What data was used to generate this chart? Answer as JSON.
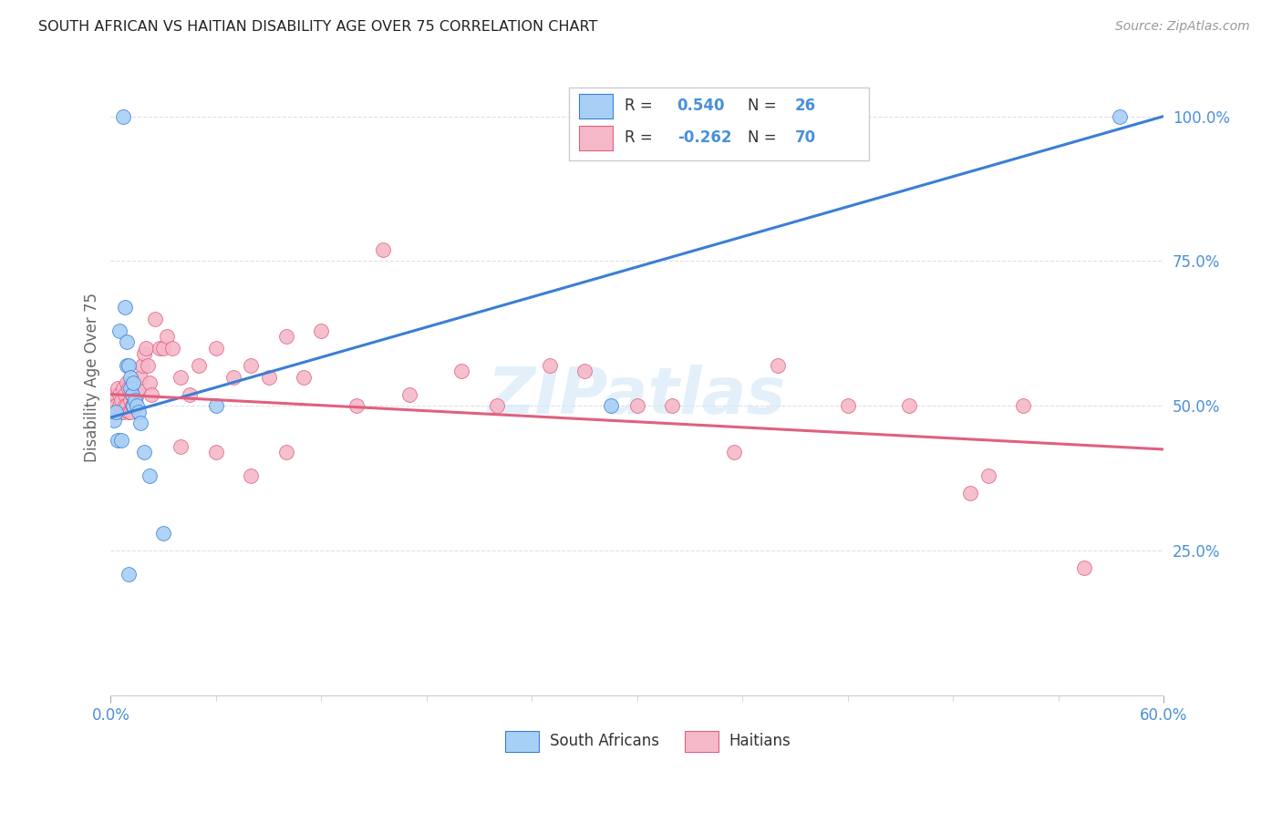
{
  "title": "SOUTH AFRICAN VS HAITIAN DISABILITY AGE OVER 75 CORRELATION CHART",
  "source": "Source: ZipAtlas.com",
  "ylabel": "Disability Age Over 75",
  "xlim": [
    0.0,
    0.6
  ],
  "ylim": [
    0.0,
    1.1
  ],
  "blue_color": "#a8cff5",
  "blue_line_color": "#3a7fd5",
  "pink_color": "#f5b8c8",
  "pink_line_color": "#e06080",
  "watermark_color": "#d8eaf8",
  "background_color": "#ffffff",
  "grid_color": "#e0e0e0",
  "tick_label_color": "#4a90d9",
  "title_color": "#222222",
  "source_color": "#999999",
  "ylabel_color": "#666666",
  "legend_text_color": "#333333",
  "blue_line_y0": 0.48,
  "blue_line_y1": 1.0,
  "pink_line_y0": 0.52,
  "pink_line_y1": 0.425,
  "sa_pts_x": [
    0.002,
    0.003,
    0.005,
    0.007,
    0.008,
    0.009,
    0.009,
    0.01,
    0.011,
    0.011,
    0.012,
    0.013,
    0.013,
    0.014,
    0.015,
    0.016,
    0.017,
    0.019,
    0.022,
    0.03,
    0.06,
    0.285,
    0.575,
    0.004,
    0.006,
    0.01
  ],
  "sa_pts_y": [
    0.475,
    0.49,
    0.63,
    1.0,
    0.67,
    0.61,
    0.57,
    0.57,
    0.55,
    0.53,
    0.52,
    0.54,
    0.5,
    0.51,
    0.5,
    0.49,
    0.47,
    0.42,
    0.38,
    0.28,
    0.5,
    0.5,
    1.0,
    0.44,
    0.44,
    0.21
  ],
  "ht_pts_x": [
    0.001,
    0.002,
    0.002,
    0.003,
    0.003,
    0.004,
    0.004,
    0.005,
    0.005,
    0.006,
    0.006,
    0.007,
    0.007,
    0.008,
    0.008,
    0.009,
    0.009,
    0.01,
    0.01,
    0.011,
    0.011,
    0.012,
    0.012,
    0.013,
    0.014,
    0.015,
    0.016,
    0.017,
    0.018,
    0.019,
    0.02,
    0.021,
    0.022,
    0.023,
    0.025,
    0.028,
    0.03,
    0.032,
    0.035,
    0.04,
    0.045,
    0.05,
    0.06,
    0.07,
    0.08,
    0.09,
    0.1,
    0.11,
    0.12,
    0.14,
    0.155,
    0.17,
    0.2,
    0.22,
    0.25,
    0.27,
    0.3,
    0.32,
    0.355,
    0.38,
    0.42,
    0.455,
    0.49,
    0.5,
    0.52,
    0.555,
    0.1,
    0.08,
    0.06,
    0.04
  ],
  "ht_pts_y": [
    0.5,
    0.51,
    0.49,
    0.52,
    0.5,
    0.53,
    0.49,
    0.52,
    0.5,
    0.51,
    0.49,
    0.53,
    0.49,
    0.52,
    0.5,
    0.54,
    0.5,
    0.53,
    0.49,
    0.51,
    0.49,
    0.52,
    0.5,
    0.5,
    0.51,
    0.52,
    0.53,
    0.55,
    0.57,
    0.59,
    0.6,
    0.57,
    0.54,
    0.52,
    0.65,
    0.6,
    0.6,
    0.62,
    0.6,
    0.55,
    0.52,
    0.57,
    0.6,
    0.55,
    0.57,
    0.55,
    0.62,
    0.55,
    0.63,
    0.5,
    0.77,
    0.52,
    0.56,
    0.5,
    0.57,
    0.56,
    0.5,
    0.5,
    0.42,
    0.57,
    0.5,
    0.5,
    0.35,
    0.38,
    0.5,
    0.22,
    0.42,
    0.38,
    0.42,
    0.43
  ]
}
